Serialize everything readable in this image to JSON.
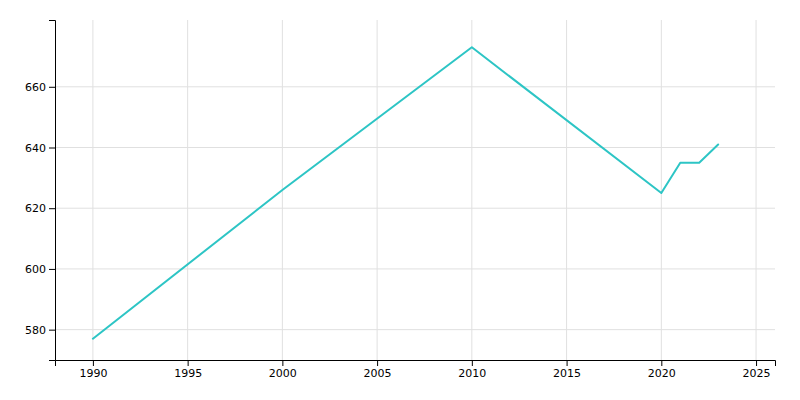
{
  "chart_data": {
    "type": "line",
    "x": [
      1990,
      2000,
      2010,
      2020,
      2021,
      2022,
      2023
    ],
    "values": [
      577,
      626,
      673,
      625,
      635,
      635,
      641
    ],
    "color": "#2DC5C5",
    "xlim": [
      1988,
      2026
    ],
    "ylim": [
      570,
      682
    ],
    "xticks": [
      1990,
      1995,
      2000,
      2005,
      2010,
      2015,
      2020,
      2025
    ],
    "yticks": [
      580,
      600,
      620,
      640,
      660
    ],
    "grid": true
  }
}
